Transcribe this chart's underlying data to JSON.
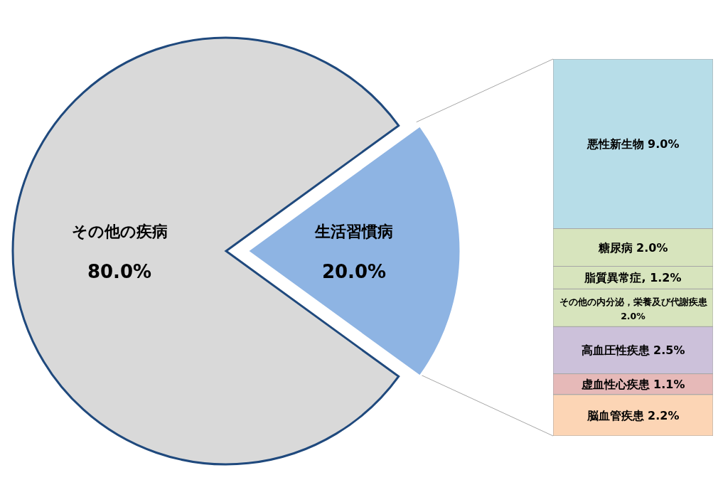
{
  "chart_data": [
    {
      "type": "pie",
      "categories": [
        "その他の疾病",
        "生活習慣病"
      ],
      "values": [
        80.0,
        20.0
      ],
      "colors": [
        "#d9d9d9",
        "#8eb4e3"
      ],
      "value_labels": [
        "80.0%",
        "20.0%"
      ]
    },
    {
      "type": "bar",
      "stacked": true,
      "categories": [
        null
      ],
      "series": [
        {
          "name": "脳血管疾患",
          "color": "#fcd5b5",
          "values": [
            2.2
          ],
          "value_labels": [
            "2.2%"
          ]
        },
        {
          "name": "虚血性心疾患",
          "color": "#e6b9b8",
          "values": [
            1.1
          ],
          "value_labels": [
            "1.1%"
          ]
        },
        {
          "name": "高血圧性疾患",
          "color": "#ccc1da",
          "values": [
            2.5
          ],
          "value_labels": [
            "2.5%"
          ]
        },
        {
          "name": "その他の内分泌，栄養及び代謝疾患",
          "color": "#d7e4bd",
          "values": [
            2.0
          ],
          "value_labels": [
            "2.0%"
          ]
        },
        {
          "name": "脂質異常症,",
          "color": "#d7e4bd",
          "values": [
            1.2
          ],
          "value_labels": [
            "1.2%"
          ]
        },
        {
          "name": "糖尿病",
          "color": "#d7e4bd",
          "values": [
            2.0
          ],
          "value_labels": [
            "2.0%"
          ]
        },
        {
          "name": "悪性新生物",
          "color": "#b7dde8",
          "values": [
            9.0
          ],
          "value_labels": [
            "9.0%"
          ]
        }
      ]
    }
  ]
}
